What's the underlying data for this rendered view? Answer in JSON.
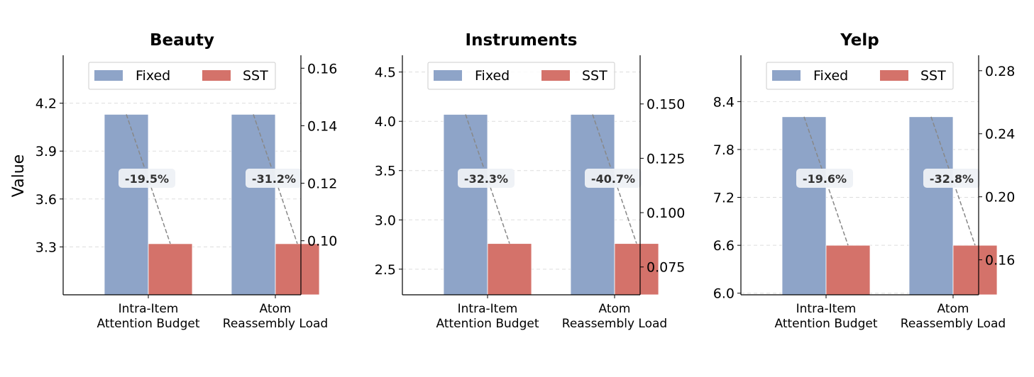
{
  "figure": {
    "ylabel": "Value",
    "legend": {
      "position": "top-center",
      "entries": [
        "Fixed",
        "SST"
      ]
    },
    "colors": {
      "Fixed": "#8EA4C8",
      "SST": "#D4726A",
      "grid": "#dddddd",
      "connector": "#888888",
      "badge_bg": "#eef1f6"
    }
  },
  "chart_data": [
    {
      "type": "bar",
      "title": "Beauty",
      "categories": [
        "Intra-Item\nAttention Budget",
        "Atom\nReassembly Load"
      ],
      "series": [
        {
          "name": "Fixed",
          "values": [
            4.13,
            4.13
          ]
        },
        {
          "name": "SST",
          "values": [
            3.32,
            3.32
          ]
        }
      ],
      "annotations": [
        "-19.5%",
        "-31.2%"
      ],
      "ylim": [
        3.0,
        4.5
      ],
      "yticks": [
        3.3,
        3.6,
        3.9,
        4.2
      ],
      "ytick_labels": [
        "3.3",
        "3.6",
        "3.9",
        "4.2"
      ],
      "y2lim": [
        0.0812,
        0.1645
      ],
      "y2ticks": [
        0.1,
        0.12,
        0.14,
        0.16
      ],
      "y2tick_labels": [
        "0.10",
        "0.12",
        "0.14",
        "0.16"
      ],
      "grid": true
    },
    {
      "type": "bar",
      "title": "Instruments",
      "categories": [
        "Intra-Item\nAttention Budget",
        "Atom\nReassembly Load"
      ],
      "series": [
        {
          "name": "Fixed",
          "values": [
            4.07,
            4.07
          ]
        },
        {
          "name": "SST",
          "values": [
            2.76,
            2.76
          ]
        }
      ],
      "annotations": [
        "-32.3%",
        "-40.7%"
      ],
      "ylim": [
        2.24,
        4.67
      ],
      "yticks": [
        2.5,
        3.0,
        3.5,
        4.0,
        4.5
      ],
      "ytick_labels": [
        "2.5",
        "3.0",
        "3.5",
        "4.0",
        "4.5"
      ],
      "y2lim": [
        0.0622,
        0.1724
      ],
      "y2ticks": [
        0.075,
        0.1,
        0.125,
        0.15
      ],
      "y2tick_labels": [
        "0.075",
        "0.100",
        "0.125",
        "0.150"
      ],
      "grid": true
    },
    {
      "type": "bar",
      "title": "Yelp",
      "categories": [
        "Intra-Item\nAttention Budget",
        "Atom\nReassembly Load"
      ],
      "series": [
        {
          "name": "Fixed",
          "values": [
            8.21,
            8.21
          ]
        },
        {
          "name": "SST",
          "values": [
            6.6,
            6.6
          ]
        }
      ],
      "annotations": [
        "-19.6%",
        "-32.8%"
      ],
      "ylim": [
        5.98,
        8.98
      ],
      "yticks": [
        6.0,
        6.6,
        7.2,
        7.8,
        8.4
      ],
      "ytick_labels": [
        "6.0",
        "6.6",
        "7.2",
        "7.8",
        "8.4"
      ],
      "y2lim": [
        0.1378,
        0.2898
      ],
      "y2ticks": [
        0.16,
        0.2,
        0.24,
        0.28
      ],
      "y2tick_labels": [
        "0.16",
        "0.20",
        "0.24",
        "0.28"
      ],
      "grid": true
    }
  ]
}
